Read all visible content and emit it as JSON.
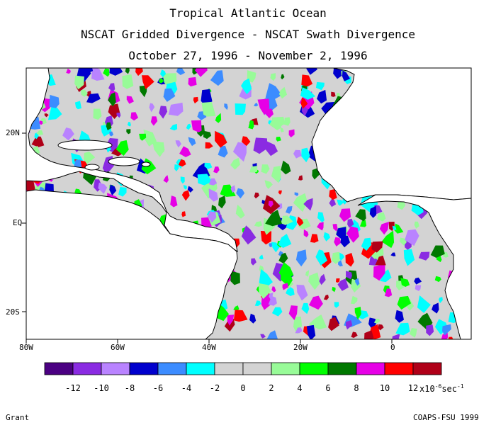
{
  "figure": {
    "title": "Tropical Atlantic Ocean",
    "subtitle": "NSCAT Gridded Divergence - NSCAT Swath Divergence",
    "date_range": "October 27, 1996 - November 2, 1996"
  },
  "map": {
    "lat_labels": [
      "20N",
      "EQ",
      "20S"
    ],
    "lon_labels": [
      "80W",
      "60W",
      "40W",
      "20W",
      "0"
    ],
    "land_color": "#ffffff",
    "coast_color": "#000000"
  },
  "colorbar": {
    "colors": [
      "#4b0082",
      "#8a2be2",
      "#b983ff",
      "#0000cd",
      "#3c8cff",
      "#00ffff",
      "#d3d3d3",
      "#d3d3d3",
      "#98fb98",
      "#00ff00",
      "#007800",
      "#e600e6",
      "#ff0000",
      "#b00018"
    ],
    "tick_labels": [
      "-12",
      "-10",
      "-8",
      "-6",
      "-4",
      "-2",
      "0",
      "2",
      "4",
      "6",
      "8",
      "10",
      "12"
    ],
    "unit_prefix": "x10",
    "unit_exp": "-6",
    "unit_suffix": "sec",
    "unit_suffix_exp": "-1"
  },
  "footer": {
    "left": "Grant",
    "right": "COAPS-FSU 1999"
  }
}
